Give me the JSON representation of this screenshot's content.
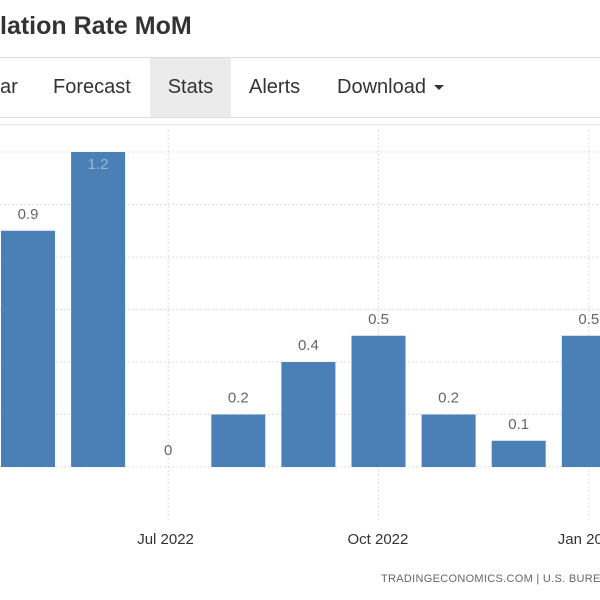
{
  "header": {
    "title": "lation Rate MoM"
  },
  "tabs": [
    "ar",
    "Forecast",
    "Stats",
    "Alerts",
    "Download"
  ],
  "footer": "TRADINGECONOMICS.COM | U.S. BURE",
  "chart_data": {
    "type": "bar",
    "categories": [
      null,
      null,
      "Jul 2022",
      null,
      null,
      "Oct 2022",
      null,
      null,
      "Jan 20"
    ],
    "values": [
      0.9,
      1.2,
      0,
      0.2,
      0.4,
      0.5,
      0.2,
      0.1,
      0.5
    ],
    "color": "#4a80b6",
    "ylim": [
      0,
      1.2
    ],
    "yticks": [
      0,
      0.2,
      0.4,
      0.6,
      0.8,
      1,
      1.2
    ],
    "grid": true
  }
}
